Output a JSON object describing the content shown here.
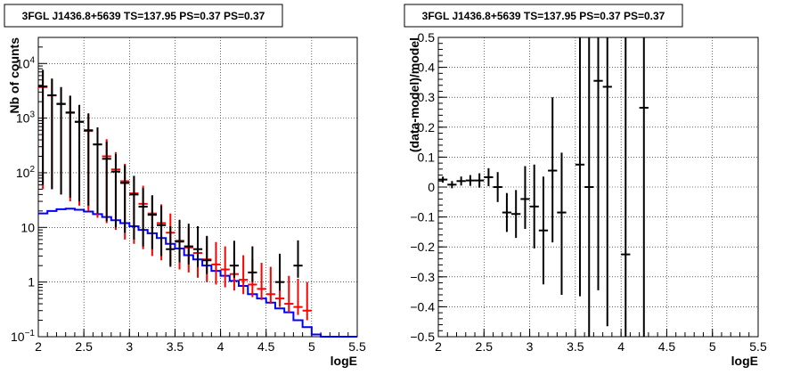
{
  "chart_data": [
    {
      "type": "line",
      "title": "3FGL J1436.8+5639 TS=137.95 PS=0.37 PS=0.37",
      "xlabel": "logE",
      "ylabel": "Nb of counts",
      "xlim": [
        2,
        5.5
      ],
      "ylim": [
        0.1,
        30000
      ],
      "yscale": "log",
      "grid": true,
      "x_ticks": [
        "2",
        "2.5",
        "3",
        "3.5",
        "4",
        "4.5",
        "5",
        "5.5"
      ],
      "y_ticks": [
        {
          "value": 0.1,
          "label": "10",
          "exp": "−1"
        },
        {
          "value": 1,
          "label": "1",
          "exp": ""
        },
        {
          "value": 10,
          "label": "10",
          "exp": ""
        },
        {
          "value": 100,
          "label": "10",
          "exp": "2"
        },
        {
          "value": 1000,
          "label": "10",
          "exp": "3"
        },
        {
          "value": 10000,
          "label": "10",
          "exp": "4"
        }
      ],
      "bin_width": 0.1,
      "series": [
        {
          "color": "#0000ff",
          "style": "step",
          "x": [
            2.05,
            2.15,
            2.25,
            2.35,
            2.45,
            2.55,
            2.65,
            2.75,
            2.85,
            2.95,
            3.05,
            3.15,
            3.25,
            3.35,
            3.45,
            3.55,
            3.65,
            3.75,
            3.85,
            3.95,
            4.05,
            4.15,
            4.25,
            4.35,
            4.45,
            4.55,
            4.65,
            4.75,
            4.85,
            4.95,
            5.05,
            5.15,
            5.25,
            5.35,
            5.45
          ],
          "values": [
            18,
            20,
            21.5,
            22,
            21,
            19.5,
            17.5,
            15.5,
            13.5,
            12,
            10.5,
            9,
            7.8,
            6.4,
            5,
            4.1,
            3.1,
            2.6,
            2,
            1.6,
            1.3,
            1.05,
            0.85,
            0.6,
            0.5,
            0.42,
            0.33,
            0.28,
            0.2,
            0.15,
            0.11,
            0.1,
            0.1,
            0.1,
            0.1
          ]
        },
        {
          "color": "#ff0000",
          "style": "errorbar",
          "x": [
            2.05,
            2.15,
            2.25,
            2.35,
            2.45,
            2.55,
            2.65,
            2.75,
            2.85,
            2.95,
            3.05,
            3.15,
            3.25,
            3.35,
            3.45,
            3.55,
            3.65,
            3.75,
            3.85,
            3.95,
            4.05,
            4.15,
            4.25,
            4.35,
            4.45,
            4.55,
            4.65,
            4.75,
            4.85,
            4.95
          ],
          "values": [
            3700,
            2600,
            1800,
            1250,
            850,
            580,
            330,
            200,
            115,
            70,
            42,
            27,
            18,
            12,
            8,
            5.7,
            4.3,
            3.4,
            2.6,
            2.1,
            1.7,
            1.4,
            1.1,
            0.9,
            0.75,
            0.6,
            0.5,
            0.4,
            0.35,
            0.3
          ],
          "err_low": [
            3650,
            2550,
            1760,
            1220,
            825,
            560,
            315,
            188,
            106,
            64,
            37,
            23,
            15,
            9.5,
            6,
            4,
            2.8,
            2.2,
            1.6,
            1.2,
            0.9,
            0.7,
            0.5,
            0.37,
            0.28,
            0.2,
            0.15,
            0.12,
            0.1,
            0.1
          ],
          "err_high": [
            3750,
            2650,
            1840,
            1280,
            875,
            600,
            345,
            212,
            124,
            76,
            47,
            31,
            21,
            14.5,
            10,
            7.5,
            6,
            5,
            4,
            3.3,
            2.8,
            2.4,
            2,
            1.7,
            1.5,
            1.3,
            1.1,
            0.9,
            0.8,
            0.7
          ]
        },
        {
          "color": "#000000",
          "style": "errorbar",
          "x": [
            2.05,
            2.15,
            2.25,
            2.35,
            2.45,
            2.55,
            2.65,
            2.75,
            2.85,
            2.95,
            3.05,
            3.15,
            3.25,
            3.35,
            3.45,
            3.55,
            3.65,
            3.75,
            3.85,
            4.15,
            4.35,
            4.65,
            4.85
          ],
          "values": [
            3800,
            2620,
            1830,
            1270,
            860,
            600,
            330,
            180,
            105,
            65,
            40,
            24,
            17,
            11,
            4,
            5.5,
            4.5,
            4,
            2.5,
            2,
            1.5,
            1,
            2
          ],
          "err_low": [
            3740,
            2570,
            1790,
            1235,
            830,
            575,
            312,
            167,
            95,
            57,
            34,
            19.5,
            13,
            8,
            2.1,
            3.2,
            2.4,
            2.1,
            1.1,
            0.8,
            0.5,
            0.3,
            0.8
          ],
          "err_high": [
            3860,
            2670,
            1870,
            1305,
            890,
            625,
            348,
            193,
            115,
            73,
            46,
            28.5,
            21,
            14,
            6.5,
            8.3,
            7.2,
            6.5,
            4.5,
            3.7,
            3,
            2.3,
            3.8
          ]
        }
      ]
    },
    {
      "type": "scatter",
      "title": "3FGL J1436.8+5639 TS=137.95 PS=0.37 PS=0.37",
      "xlabel": "logE",
      "ylabel": "(data-model)/model",
      "xlim": [
        2,
        5.5
      ],
      "ylim": [
        -0.5,
        0.5
      ],
      "grid": true,
      "x_ticks": [
        "2",
        "2.5",
        "3",
        "3.5",
        "4",
        "4.5",
        "5",
        "5.5"
      ],
      "y_ticks": [
        "−0.5",
        "−0.4",
        "−0.3",
        "−0.2",
        "−0.1",
        "0",
        "0.1",
        "0.2",
        "0.3",
        "0.4",
        "0.5"
      ],
      "bin_width": 0.1,
      "series": [
        {
          "color": "#000000",
          "style": "errorbar",
          "x": [
            2.05,
            2.15,
            2.25,
            2.35,
            2.45,
            2.55,
            2.65,
            2.75,
            2.85,
            2.95,
            3.05,
            3.15,
            3.25,
            3.35,
            3.55,
            3.65,
            3.75,
            3.85,
            4.05,
            4.25
          ],
          "values": [
            0.025,
            0.008,
            0.02,
            0.022,
            0.022,
            0.033,
            0.0,
            -0.085,
            -0.09,
            -0.04,
            -0.065,
            -0.145,
            0.055,
            -0.085,
            0.075,
            0.0,
            0.355,
            0.335,
            -0.225,
            0.265
          ],
          "err_low": [
            0.01,
            0.012,
            0.015,
            0.018,
            0.024,
            0.03,
            0.05,
            0.065,
            0.08,
            0.1,
            0.14,
            0.18,
            0.24,
            0.275,
            0.44,
            0.5,
            0.7,
            0.8,
            0.3,
            0.8
          ],
          "err_high": [
            0.01,
            0.012,
            0.015,
            0.018,
            0.024,
            0.03,
            0.05,
            0.065,
            0.08,
            0.11,
            0.14,
            0.18,
            0.245,
            0.2,
            0.5,
            0.5,
            0.7,
            0.8,
            0.8,
            0.8
          ]
        }
      ]
    }
  ]
}
